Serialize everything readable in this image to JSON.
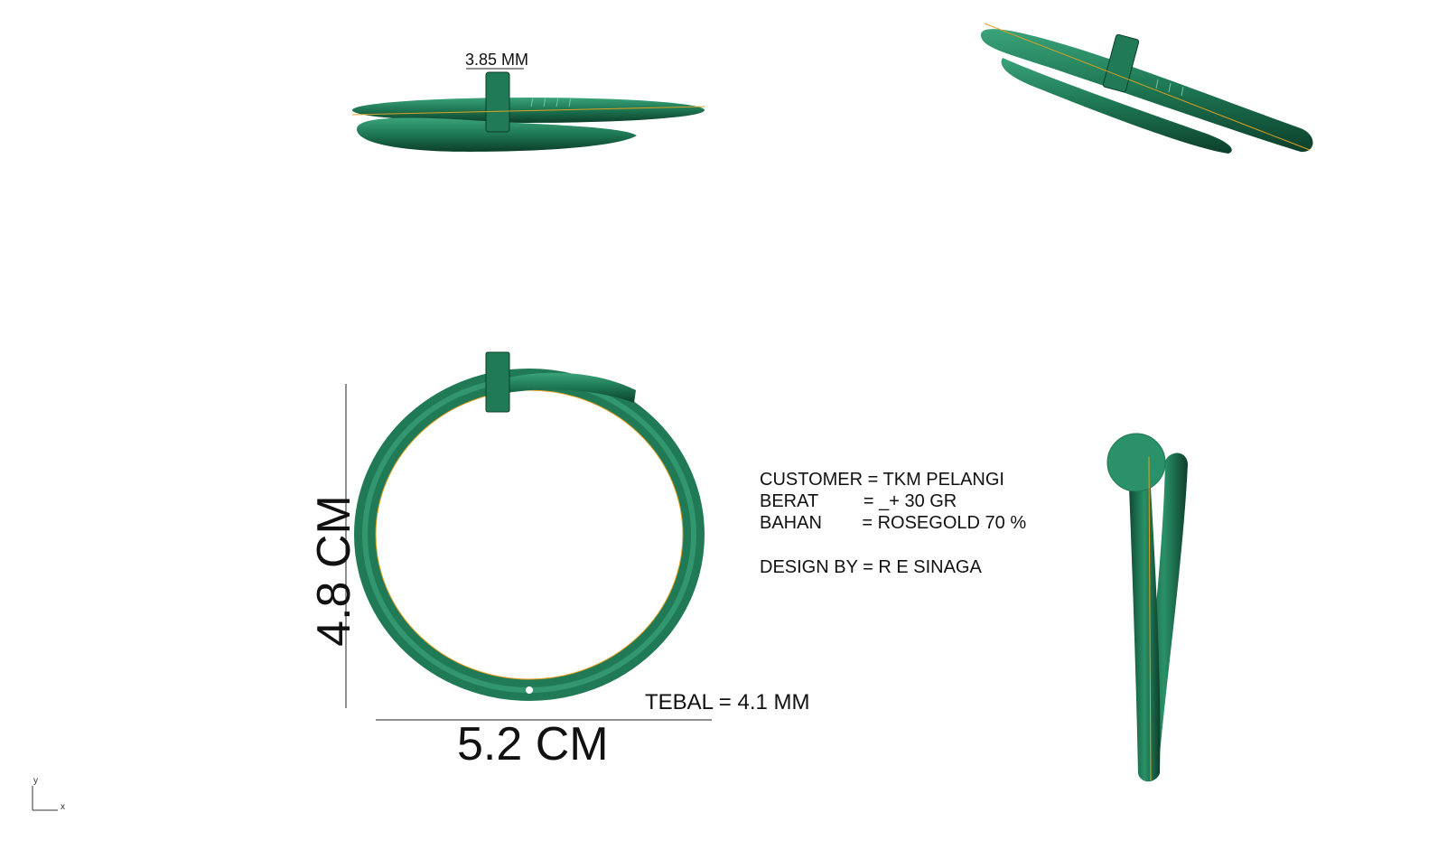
{
  "colors": {
    "metal": "#1f7a55",
    "metal_dark": "#0f4a33",
    "metal_light": "#3aa37a",
    "guide": "#e0a020",
    "dim_line": "#222222"
  },
  "annotations": {
    "nail_width": "3.85 MM",
    "height": "4.8 CM",
    "width": "5.2 CM",
    "thickness": "TEBAL = 4.1 MM"
  },
  "specs": {
    "customer": "CUSTOMER = TKM PELANGI",
    "weight": "BERAT         = _+ 30 GR",
    "material": "BAHAN        = ROSEGOLD 70 %",
    "designer": "DESIGN BY = R E SINAGA"
  },
  "axes": {
    "x": "x",
    "y": "y"
  },
  "icons": [
    "axis-gizmo-icon"
  ]
}
